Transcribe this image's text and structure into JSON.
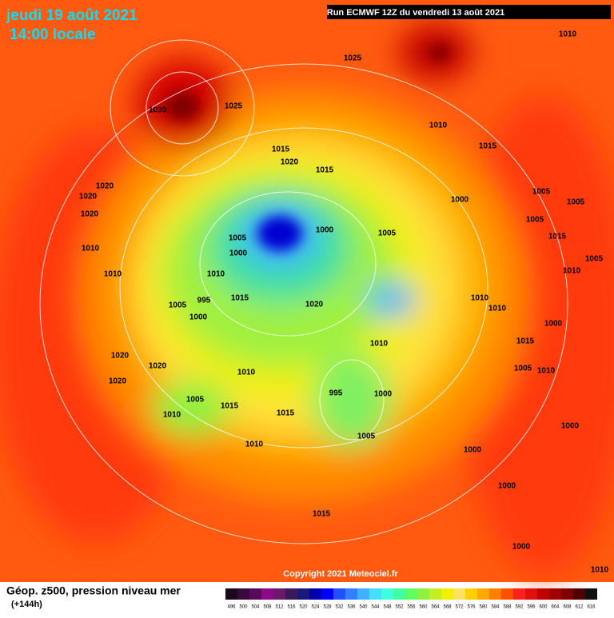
{
  "header": {
    "date": "jeudi 19 août 2021",
    "time": "14:00 locale",
    "run": "Run ECMWF 12Z du vendredi 13 août 2021"
  },
  "map": {
    "isobar_labels": [
      1030,
      1025,
      1025,
      1010,
      1010,
      1015,
      1015,
      1020,
      1015,
      1020,
      1020,
      1020,
      1005,
      1005,
      1000,
      1005,
      1000,
      1005,
      1000,
      1010,
      1010,
      1010,
      995,
      1015,
      1005,
      1000,
      1020,
      1010,
      1010,
      1010,
      1020,
      1020,
      1020,
      1010,
      995,
      1000,
      1005,
      1015,
      1010,
      1015,
      1010,
      1005,
      1000,
      1000,
      1015,
      1000,
      1010,
      1000,
      1000,
      1015,
      1005,
      1010,
      1005,
      1010,
      1015,
      1005
    ],
    "copyright": "Copyright 2021 Meteociel.fr"
  },
  "footer": {
    "title": "Géop. z500, pression niveau mer",
    "lead": "(+144h)",
    "scale": [
      {
        "value": 496,
        "color": "#1a0a1a"
      },
      {
        "value": 500,
        "color": "#3a0a3a"
      },
      {
        "value": 504,
        "color": "#5a0a5a"
      },
      {
        "value": 508,
        "color": "#8a0a8a"
      },
      {
        "value": 512,
        "color": "#6a1a6a"
      },
      {
        "value": 516,
        "color": "#3a1a5a"
      },
      {
        "value": 520,
        "color": "#1a1a7a"
      },
      {
        "value": 524,
        "color": "#0000b0"
      },
      {
        "value": 528,
        "color": "#0000ff"
      },
      {
        "value": 532,
        "color": "#2050ff"
      },
      {
        "value": 536,
        "color": "#3080ff"
      },
      {
        "value": 540,
        "color": "#40b0ff"
      },
      {
        "value": 544,
        "color": "#40e0ff"
      },
      {
        "value": 548,
        "color": "#40ffe0"
      },
      {
        "value": 552,
        "color": "#40ffa0"
      },
      {
        "value": 556,
        "color": "#60ff60"
      },
      {
        "value": 560,
        "color": "#90f040"
      },
      {
        "value": 564,
        "color": "#c0f020"
      },
      {
        "value": 568,
        "color": "#f0f000"
      },
      {
        "value": 572,
        "color": "#ffe060"
      },
      {
        "value": 576,
        "color": "#ffd000"
      },
      {
        "value": 580,
        "color": "#ffa800"
      },
      {
        "value": 584,
        "color": "#ff8000"
      },
      {
        "value": 588,
        "color": "#ff5000"
      },
      {
        "value": 592,
        "color": "#ff2020"
      },
      {
        "value": 596,
        "color": "#e01010"
      },
      {
        "value": 600,
        "color": "#c00000"
      },
      {
        "value": 604,
        "color": "#a00000"
      },
      {
        "value": 608,
        "color": "#800000"
      },
      {
        "value": 612,
        "color": "#500000"
      },
      {
        "value": 616,
        "color": "#101010"
      }
    ]
  }
}
